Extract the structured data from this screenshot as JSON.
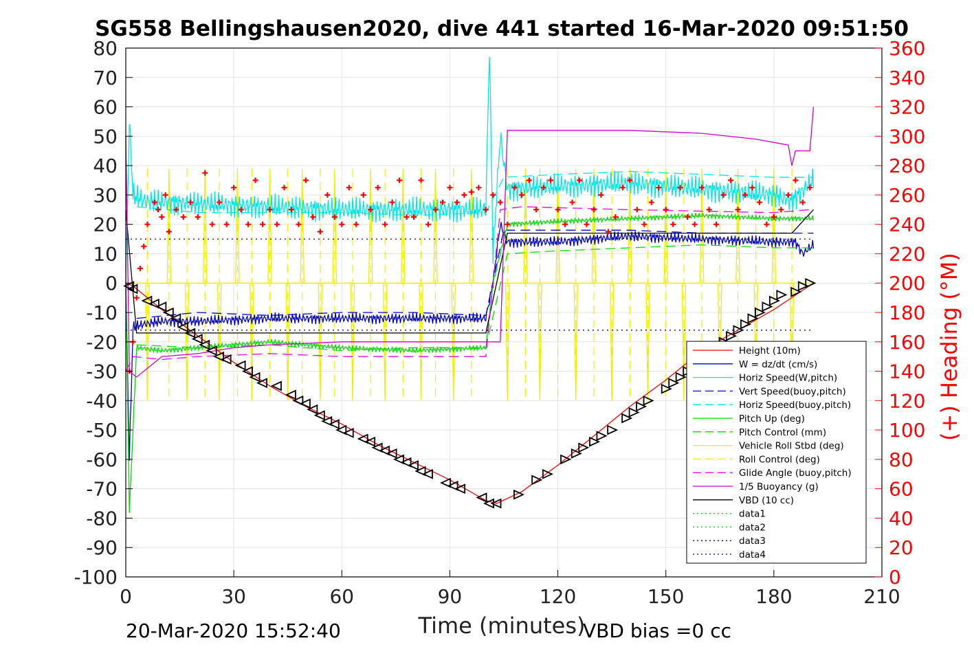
{
  "chart_data": {
    "type": "line",
    "title": "SG558 Bellingshausen2020, dive 441 started 16-Mar-2020 09:51:50",
    "xlabel": "Time (minutes)",
    "y2label": "(+) Heading (°M)",
    "xlim": [
      0,
      210
    ],
    "ylim": [
      -100,
      80
    ],
    "y2lim": [
      0,
      360
    ],
    "xticks": [
      "0",
      "30",
      "60",
      "90",
      "120",
      "150",
      "180",
      "210"
    ],
    "yticks": [
      "80",
      "70",
      "60",
      "50",
      "40",
      "30",
      "20",
      "10",
      "0",
      "-10",
      "-20",
      "-30",
      "-40",
      "-50",
      "-60",
      "-70",
      "-80",
      "-90",
      "-100"
    ],
    "y2ticks": [
      "360",
      "340",
      "320",
      "300",
      "280",
      "260",
      "240",
      "220",
      "200",
      "180",
      "160",
      "140",
      "120",
      "100",
      "80",
      "60",
      "40",
      "20",
      "0"
    ],
    "grid": true,
    "legend_position": "lower-right",
    "footer_left": "20-Mar-2020 15:52:40",
    "footer_right": "VBD bias =0 cc",
    "legend": [
      {
        "name": "Height (10m)",
        "color": "#ff0000",
        "dash": "solid"
      },
      {
        "name": "W = dz/dt (cm/s)",
        "color": "#0000cc",
        "dash": "solid"
      },
      {
        "name": "Horiz Speed(W,pitch)",
        "color": "#00e5e5",
        "dash": "solid"
      },
      {
        "name": "Vert Speed(buoy,pitch)",
        "color": "#0000cc",
        "dash": "dashed"
      },
      {
        "name": "Horiz Speed(buoy,pitch)",
        "color": "#00e5e5",
        "dash": "dashed"
      },
      {
        "name": "Pitch Up (deg)",
        "color": "#00dd00",
        "dash": "solid"
      },
      {
        "name": "Pitch Control (mm)",
        "color": "#00dd00",
        "dash": "dashed"
      },
      {
        "name": "Vehicle Roll Stbd (deg)",
        "color": "#eeee00",
        "dash": "solid"
      },
      {
        "name": "Roll Control (deg)",
        "color": "#eeee00",
        "dash": "dashed"
      },
      {
        "name": "Glide Angle (buoy,pitch)",
        "color": "#ee00ee",
        "dash": "dashed"
      },
      {
        "name": "1/5 Buoyancy (g)",
        "color": "#cc00cc",
        "dash": "solid"
      },
      {
        "name": "VBD (10 cc)",
        "color": "#000000",
        "dash": "solid"
      },
      {
        "name": "data1",
        "color": "#00cc00",
        "dash": "dotted"
      },
      {
        "name": "data2",
        "color": "#00cc00",
        "dash": "dotted"
      },
      {
        "name": "data3",
        "color": "#000088",
        "dash": "dotted"
      },
      {
        "name": "data4",
        "color": "#000088",
        "dash": "dotted"
      }
    ],
    "series": [
      {
        "key": "height",
        "color": "#ff0000",
        "x": [
          0,
          2,
          10,
          20,
          30,
          40,
          50,
          60,
          70,
          80,
          90,
          100,
          103,
          110,
          120,
          130,
          140,
          150,
          160,
          170,
          180,
          191
        ],
        "y": [
          0,
          -1,
          -9,
          -18,
          -27,
          -35,
          -42,
          -48,
          -55,
          -61,
          -67,
          -74,
          -75,
          -71,
          -62,
          -52,
          -42,
          -33,
          -23,
          -16,
          -9,
          0
        ]
      },
      {
        "key": "w_dz_dt",
        "color": "#0000cc",
        "x": [
          0,
          1,
          2,
          5,
          10,
          20,
          40,
          60,
          80,
          100,
          102,
          104,
          106,
          120,
          140,
          160,
          180,
          186,
          188,
          191
        ],
        "y": [
          0,
          -60,
          -15,
          -14,
          -13,
          -13,
          -12,
          -12,
          -12,
          -12,
          0,
          20,
          14,
          14,
          16,
          15,
          14,
          14,
          10,
          13
        ]
      },
      {
        "key": "horiz_speed_w_pitch",
        "color": "#00e5e5",
        "x": [
          0,
          1,
          2,
          5,
          20,
          40,
          60,
          80,
          100,
          101,
          102,
          104,
          106,
          120,
          140,
          160,
          180,
          185,
          191
        ],
        "y": [
          0,
          55,
          30,
          28,
          27,
          26,
          25,
          25,
          25,
          80,
          10,
          50,
          32,
          33,
          34,
          32,
          30,
          28,
          35
        ]
      },
      {
        "key": "vert_speed_buoy_pitch",
        "color": "#0000cc",
        "x": [
          3,
          20,
          40,
          60,
          80,
          100,
          105,
          120,
          140,
          160,
          180,
          191
        ],
        "y": [
          -12,
          -10,
          -11,
          -10,
          -10,
          -11,
          18,
          18,
          18,
          17,
          17,
          17
        ]
      },
      {
        "key": "horiz_speed_buoy_pitch",
        "color": "#00e5e5",
        "x": [
          3,
          20,
          40,
          60,
          80,
          100,
          105,
          120,
          140,
          160,
          180,
          191
        ],
        "y": [
          26,
          24,
          24,
          24,
          23,
          24,
          36,
          37,
          38,
          37,
          36,
          36
        ]
      },
      {
        "key": "pitch_up",
        "color": "#00dd00",
        "x": [
          0,
          1,
          3,
          10,
          20,
          40,
          60,
          80,
          100,
          102,
          106,
          120,
          140,
          160,
          180,
          191
        ],
        "y": [
          0,
          -78,
          -22,
          -23,
          -22,
          -20,
          -22,
          -23,
          -22,
          0,
          20,
          21,
          22,
          23,
          22,
          22
        ]
      },
      {
        "key": "pitch_control",
        "color": "#00dd00",
        "x": [
          3,
          20,
          40,
          60,
          80,
          100,
          106,
          120,
          140,
          160,
          180,
          191
        ],
        "y": [
          -21,
          -22,
          -21,
          -23,
          -22,
          -22,
          10,
          11,
          12,
          13,
          12,
          12
        ]
      },
      {
        "key": "vbd",
        "color": "#000000",
        "x": [
          0,
          3,
          100,
          106,
          185,
          191
        ],
        "y": [
          25,
          -17,
          -17,
          17,
          17,
          25
        ]
      },
      {
        "key": "buoyancy",
        "color": "#cc00cc",
        "x": [
          0,
          1,
          3,
          10,
          20,
          30,
          40,
          60,
          80,
          100,
          104,
          106,
          120,
          140,
          160,
          175,
          184,
          185,
          186,
          190,
          191
        ],
        "y": [
          50,
          -30,
          -32,
          -25,
          -24,
          -22,
          -21,
          -20,
          -20,
          -20,
          -20,
          52,
          52,
          52,
          51,
          49,
          47,
          40,
          45,
          45,
          60
        ]
      },
      {
        "key": "glide_angle",
        "color": "#ee00ee",
        "x": [
          0,
          2,
          10,
          20,
          40,
          60,
          80,
          100,
          104,
          110,
          140,
          180,
          190
        ],
        "y": [
          -30,
          -25,
          -26,
          -25,
          -24,
          -25,
          -25,
          -25,
          25,
          26,
          25,
          24,
          25
        ]
      },
      {
        "key": "data3",
        "color": "#000088",
        "x": [
          0,
          100,
          191
        ],
        "y": [
          15,
          15,
          15
        ]
      },
      {
        "key": "data4",
        "color": "#000088",
        "x": [
          0,
          100,
          191
        ],
        "y": [
          -16,
          -16,
          -16
        ]
      }
    ],
    "roll_pulse_times": [
      6,
      12,
      17,
      22,
      26,
      31,
      35,
      40,
      45,
      49,
      54,
      58,
      63,
      68,
      72,
      77,
      82,
      86,
      91,
      96,
      106,
      111,
      115,
      120,
      125,
      130,
      135,
      140,
      145,
      150,
      155,
      160,
      165,
      170,
      175,
      180,
      185
    ],
    "heading_markers": {
      "x": [
        1,
        2,
        3,
        4,
        5,
        6,
        8,
        9,
        10,
        11,
        12,
        14,
        16,
        18,
        20,
        22,
        24,
        26,
        28,
        30,
        32,
        34,
        36,
        38,
        40,
        42,
        44,
        46,
        48,
        50,
        52,
        54,
        56,
        58,
        60,
        62,
        64,
        66,
        68,
        70,
        72,
        74,
        76,
        78,
        80,
        82,
        84,
        86,
        88,
        90,
        92,
        94,
        96,
        98,
        100,
        102,
        104,
        106,
        108,
        110,
        112,
        114,
        116,
        118,
        120,
        122,
        124,
        126,
        128,
        130,
        132,
        134,
        136,
        138,
        140,
        142,
        144,
        146,
        148,
        150,
        152,
        154,
        156,
        158,
        160,
        162,
        164,
        166,
        168,
        170,
        172,
        174,
        176,
        178,
        180,
        182,
        184,
        186,
        188,
        190
      ],
      "y": [
        140,
        160,
        190,
        210,
        225,
        240,
        255,
        250,
        245,
        260,
        235,
        250,
        245,
        255,
        245,
        275,
        240,
        255,
        240,
        265,
        250,
        240,
        270,
        240,
        250,
        240,
        265,
        250,
        240,
        270,
        245,
        235,
        260,
        245,
        240,
        265,
        240,
        260,
        250,
        265,
        240,
        255,
        270,
        245,
        245,
        270,
        240,
        250,
        255,
        265,
        255,
        260,
        262,
        265,
        250,
        260,
        255,
        240,
        265,
        260,
        270,
        250,
        265,
        270,
        250,
        240,
        255,
        270,
        240,
        250,
        260,
        235,
        245,
        265,
        270,
        250,
        240,
        255,
        265,
        250,
        240,
        265,
        245,
        240,
        265,
        250,
        240,
        260,
        270,
        250,
        260,
        265,
        255,
        240,
        245,
        250,
        260,
        270,
        255,
        265
      ]
    },
    "depth_markers": {
      "x": [
        1,
        2,
        6,
        8,
        10,
        12,
        14,
        16,
        18,
        20,
        22,
        24,
        26,
        28,
        32,
        34,
        36,
        38,
        42,
        46,
        48,
        50,
        52,
        54,
        56,
        58,
        60,
        62,
        66,
        68,
        70,
        72,
        74,
        76,
        78,
        80,
        82,
        84,
        89,
        91,
        93,
        99,
        101,
        103,
        109,
        114,
        117,
        122,
        125,
        127,
        130,
        132,
        135,
        139,
        141,
        143,
        145,
        150,
        152,
        154,
        156,
        158,
        160,
        164,
        166,
        168,
        170,
        172,
        174,
        176,
        178,
        180,
        182,
        186,
        188,
        190
      ],
      "y": [
        -1,
        -2,
        -6,
        -7,
        -8,
        -10,
        -12,
        -15,
        -17,
        -19,
        -21,
        -23,
        -25,
        -26,
        -28,
        -30,
        -32,
        -34,
        -35,
        -38,
        -40,
        -41,
        -43,
        -45,
        -47,
        -48,
        -50,
        -51,
        -53,
        -54,
        -56,
        -57,
        -58,
        -60,
        -61,
        -62,
        -64,
        -65,
        -68,
        -69,
        -70,
        -73,
        -75,
        -75,
        -72,
        -67,
        -65,
        -60,
        -58,
        -56,
        -54,
        -52,
        -50,
        -46,
        -44,
        -42,
        -40,
        -36,
        -34,
        -32,
        -30,
        -28,
        -26,
        -22,
        -20,
        -18,
        -16,
        -14,
        -12,
        -10,
        -8,
        -6,
        -4,
        -3,
        -1,
        0
      ]
    }
  }
}
